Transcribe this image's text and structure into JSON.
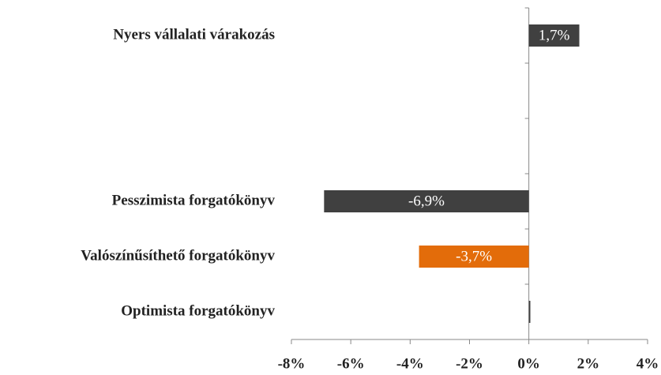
{
  "chart_data": {
    "type": "hbar",
    "categories": [
      "Nyers vállalati várakozás",
      null,
      null,
      "Pesszimista forgatókönyv",
      "Valószínűsíthető forgatókönyv",
      "Optimista forgatókönyv"
    ],
    "values": [
      1.7,
      null,
      null,
      -6.9,
      -3.7,
      0.05
    ],
    "value_labels": [
      "1,7%",
      null,
      null,
      "-6,9%",
      "-3,7%",
      null
    ],
    "colors": [
      "#404040",
      null,
      null,
      "#404040",
      "#e36c0a",
      "#404040"
    ],
    "xlim": [
      -8,
      4
    ],
    "xticks": [
      {
        "value": -8,
        "label": "-8%"
      },
      {
        "value": -6,
        "label": "-6%"
      },
      {
        "value": -4,
        "label": "-4%"
      },
      {
        "value": -2,
        "label": "-2%"
      },
      {
        "value": 0,
        "label": "0%"
      },
      {
        "value": 2,
        "label": "2%"
      },
      {
        "value": 4,
        "label": "4%"
      }
    ],
    "grid": false
  }
}
